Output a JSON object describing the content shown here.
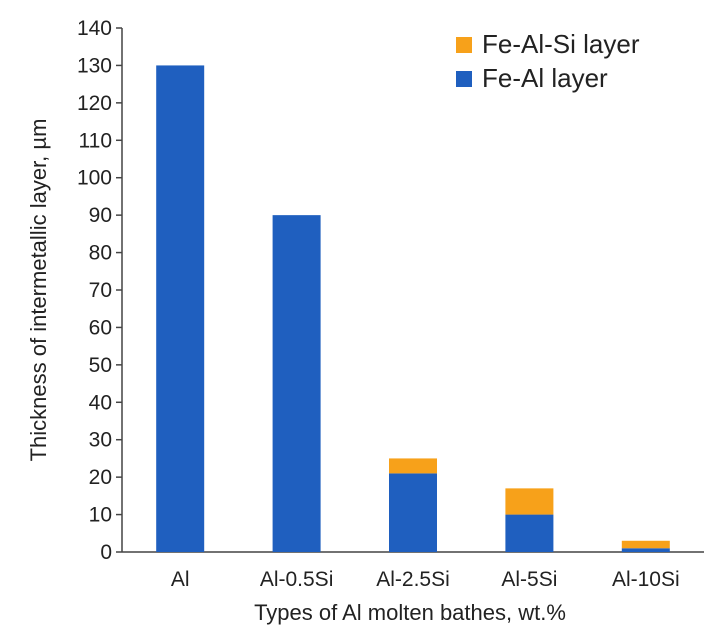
{
  "chart_data": {
    "type": "bar",
    "stacked": true,
    "categories": [
      "Al",
      "Al-0.5Si",
      "Al-2.5Si",
      "Al-5Si",
      "Al-10Si"
    ],
    "series": [
      {
        "name": "Fe-Al layer",
        "color": "#1f5fbf",
        "values": [
          130,
          90,
          21,
          10,
          1
        ]
      },
      {
        "name": "Fe-Al-Si layer",
        "color": "#f7a11a",
        "values": [
          0,
          0,
          4,
          7,
          2
        ]
      }
    ],
    "xlabel": "Types of Al molten bathes, wt.%",
    "ylabel": "Thickness of intermetallic layer, µm",
    "ylim": [
      0,
      140
    ],
    "ytick_step": 10,
    "yticks": [
      "0",
      "10",
      "20",
      "30",
      "40",
      "50",
      "60",
      "70",
      "80",
      "90",
      "100",
      "110",
      "120",
      "130",
      "140"
    ],
    "grid": false,
    "legend_position": "top-right",
    "legend_order": [
      "Fe-Al-Si layer",
      "Fe-Al layer"
    ]
  }
}
